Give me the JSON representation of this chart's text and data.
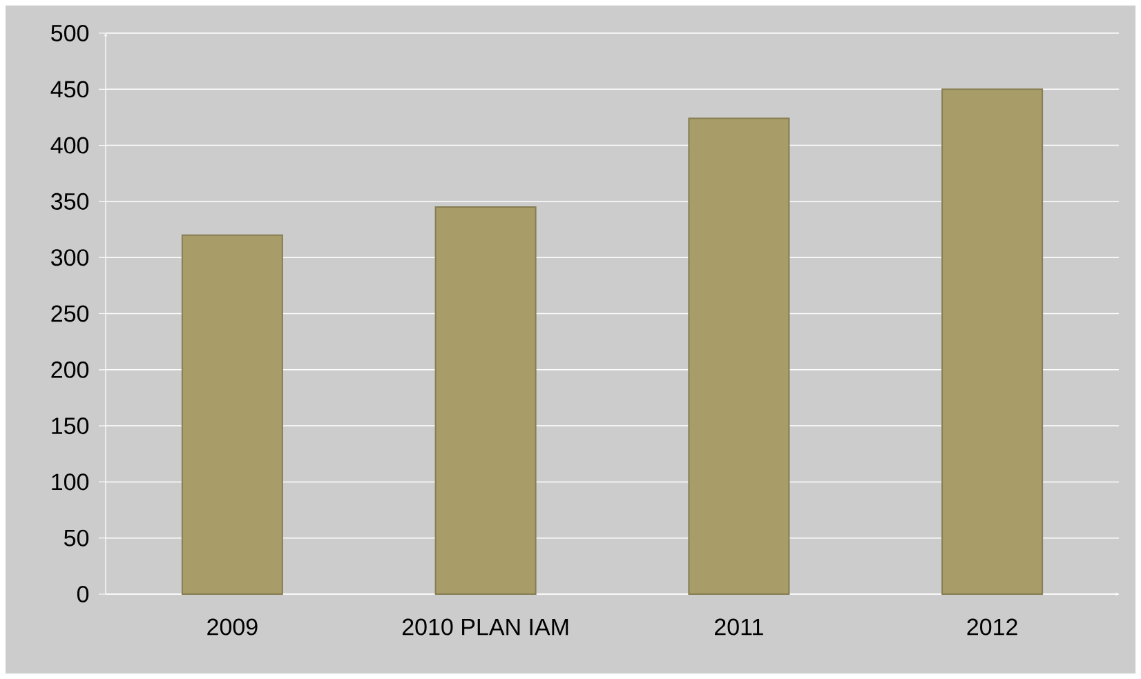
{
  "chart_data": {
    "type": "bar",
    "categories": [
      "2009",
      "2010 PLAN IAM",
      "2011",
      "2012"
    ],
    "values": [
      320,
      345,
      424,
      450
    ],
    "color": "#a89c68",
    "ylim": [
      0,
      500
    ],
    "yticks": [
      0,
      50,
      100,
      150,
      200,
      250,
      300,
      350,
      400,
      450,
      500
    ],
    "grid": "y"
  }
}
